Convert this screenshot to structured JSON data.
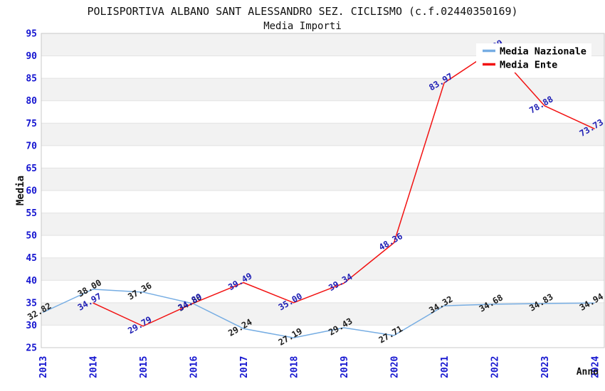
{
  "chart_data": {
    "type": "line",
    "title": "POLISPORTIVA ALBANO SANT ALESSANDRO SEZ. CICLISMO (c.f.02440350169)",
    "subtitle": "Media Importi",
    "xlabel": "Anno",
    "ylabel": "Media",
    "x": [
      2013,
      2014,
      2015,
      2016,
      2017,
      2018,
      2019,
      2020,
      2021,
      2022,
      2023,
      2024
    ],
    "y_ticks": [
      25,
      30,
      35,
      40,
      45,
      50,
      55,
      60,
      65,
      70,
      75,
      80,
      85,
      90,
      95
    ],
    "ylim": [
      25,
      95
    ],
    "grid": "horizontal-bands-alternating",
    "legend_position": "top-right",
    "colors": {
      "tick_label": "#1515d0",
      "band": "#f2f2f2",
      "gridline": "#e2e2e2",
      "plot_border": "#c8c8c8",
      "legend_background": "#ffffff"
    },
    "series": [
      {
        "name": "Media Nazionale",
        "color": "#76ade3",
        "label_color": "#1c1c1c",
        "values": [
          32.82,
          38.0,
          37.36,
          34.8,
          29.24,
          27.19,
          29.43,
          27.71,
          34.32,
          34.68,
          34.83,
          34.94
        ]
      },
      {
        "name": "Media Ente",
        "color": "#f21212",
        "label_color": "#2020b5",
        "values": [
          null,
          34.97,
          29.79,
          34.89,
          39.49,
          35.0,
          39.34,
          48.36,
          83.97,
          91.39,
          78.88,
          73.73
        ]
      }
    ]
  }
}
